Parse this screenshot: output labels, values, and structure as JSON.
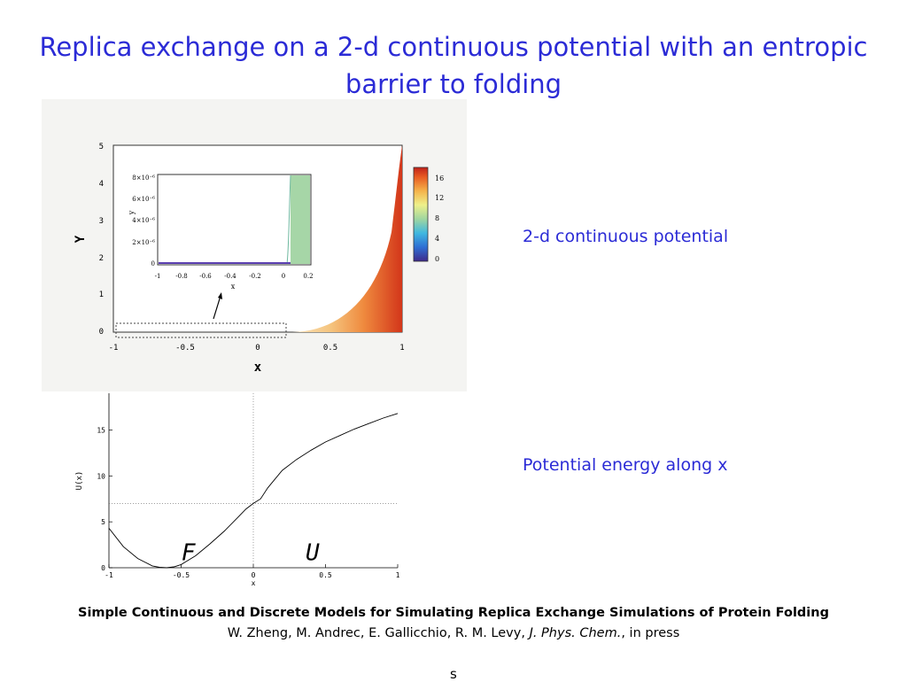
{
  "slide": {
    "title": "Replica exchange on a 2-d continuous potential with an entropic barrier to folding",
    "label_top": "2-d continuous potential",
    "label_bottom": "Potential energy along x",
    "footer_title": "Simple Continuous and Discrete Models for Simulating Replica Exchange Simulations of Protein Folding",
    "footer_authors": "W. Zheng, M. Andrec, E. Gallicchio, R. M. Levy,",
    "footer_journal": "J. Phys. Chem.",
    "footer_status": "in press",
    "stray_text": "s"
  },
  "top_plot": {
    "xlabel": "x",
    "ylabel": "Y",
    "xticks": [
      "-1",
      "-0.5",
      "0",
      "0.5",
      "1"
    ],
    "yticks": [
      "0",
      "1",
      "2",
      "3",
      "4",
      "5"
    ],
    "colorbar_ticks": [
      "16",
      "12",
      "8",
      "4",
      "0"
    ],
    "inset": {
      "xlabel": "x",
      "ylabel": "y",
      "xticks": [
        "-1",
        "-0.8",
        "-0.6",
        "-0.4",
        "-0.2",
        "0",
        "0.2"
      ],
      "yticks": [
        "0",
        "2×10⁻⁶",
        "4×10⁻⁶",
        "6×10⁻⁶",
        "8×10⁻⁶"
      ]
    }
  },
  "chart_data": {
    "type": "line",
    "xlabel": "x",
    "ylabel": "U(x)",
    "xlim": [
      -1,
      1
    ],
    "ylim": [
      0,
      19
    ],
    "xticks": [
      "-1",
      "-0.5",
      "0",
      "0.5",
      "1"
    ],
    "yticks": [
      "0",
      "5",
      "10",
      "15"
    ],
    "series": [
      {
        "x": [
          -1.0,
          -0.9,
          -0.8,
          -0.7,
          -0.65,
          -0.6,
          -0.55,
          -0.5,
          -0.4,
          -0.3,
          -0.2,
          -0.1,
          -0.05,
          0.0,
          0.05,
          0.1,
          0.2,
          0.3,
          0.4,
          0.5,
          0.6,
          0.7,
          0.8,
          0.9,
          1.0
        ],
        "y": [
          4.3,
          2.3,
          1.0,
          0.2,
          0.05,
          0.0,
          0.1,
          0.35,
          1.3,
          2.6,
          4.0,
          5.6,
          6.4,
          7.0,
          7.5,
          8.7,
          10.6,
          11.8,
          12.8,
          13.7,
          14.4,
          15.1,
          15.7,
          16.3,
          16.8
        ]
      }
    ],
    "reference_lines": {
      "vertical_x": 0,
      "horizontal_y": 7.0
    },
    "annotations": [
      "F",
      "U"
    ]
  }
}
